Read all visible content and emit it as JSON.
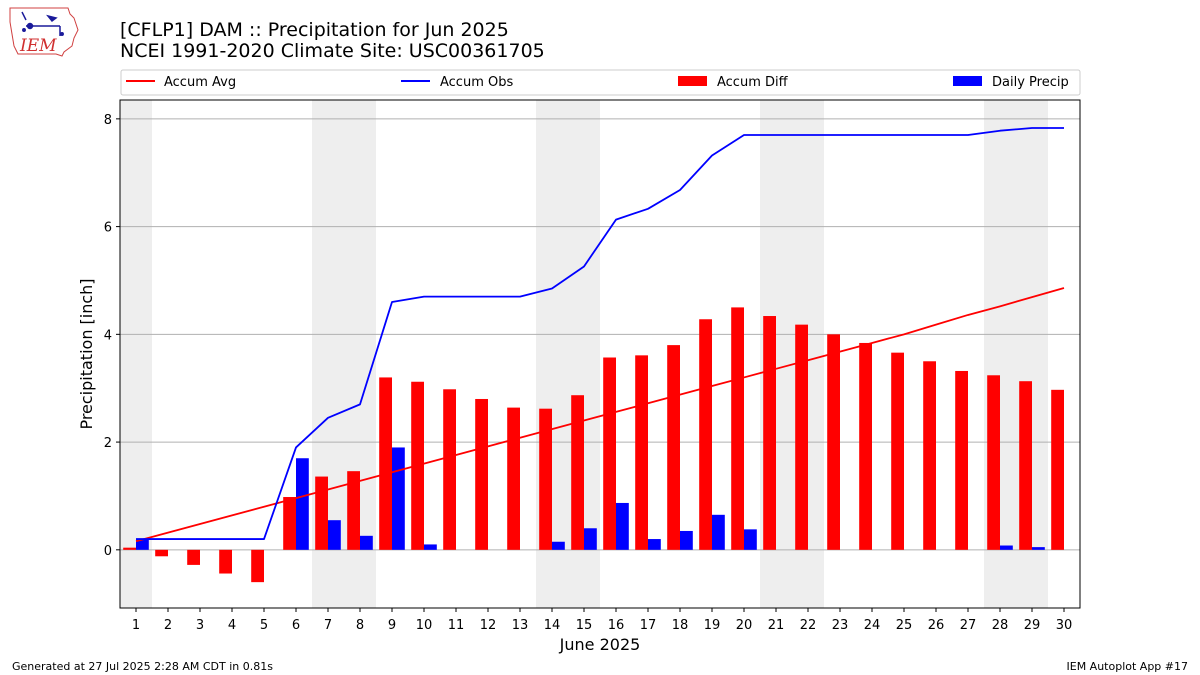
{
  "logo": {
    "text": "IEM"
  },
  "header": {
    "title": "[CFLP1] DAM :: Precipitation for Jun 2025",
    "subtitle": "NCEI 1991-2020 Climate Site: USC00361705"
  },
  "footer": {
    "left": "Generated at 27 Jul 2025 2:28 AM CDT in 0.81s",
    "right": "IEM Autoplot App #17"
  },
  "colors": {
    "accum_avg": "#ff0000",
    "accum_obs": "#0000ff",
    "accum_diff": "#ff0000",
    "daily_precip": "#0000ff",
    "weekend_shade": "#eeeeee",
    "grid": "#b0b0b0"
  },
  "chart_data": {
    "type": "bar",
    "title": "[CFLP1] DAM :: Precipitation for Jun 2025",
    "subtitle": "NCEI 1991-2020 Climate Site: USC00361705",
    "xlabel": "June 2025",
    "ylabel": "Precipitation [inch]",
    "xlim": [
      0.5,
      30.5
    ],
    "ylim": [
      -1.08,
      8.35
    ],
    "x": [
      1,
      2,
      3,
      4,
      5,
      6,
      7,
      8,
      9,
      10,
      11,
      12,
      13,
      14,
      15,
      16,
      17,
      18,
      19,
      20,
      21,
      22,
      23,
      24,
      25,
      26,
      27,
      28,
      29,
      30
    ],
    "x_tick_labels": [
      "1",
      "2",
      "3",
      "4",
      "5",
      "6",
      "7",
      "8",
      "9",
      "10",
      "11",
      "12",
      "13",
      "14",
      "15",
      "16",
      "17",
      "18",
      "19",
      "20",
      "21",
      "22",
      "23",
      "24",
      "25",
      "26",
      "27",
      "28",
      "29",
      "30"
    ],
    "y_ticks": [
      0,
      2,
      4,
      6,
      8
    ],
    "y_tick_labels": [
      "0",
      "2",
      "4",
      "6",
      "8"
    ],
    "grid": "horizontal",
    "shaded_days": [
      1,
      7,
      8,
      14,
      15,
      21,
      22,
      28,
      29
    ],
    "legend_position": "top",
    "series": [
      {
        "name": "Accum Avg",
        "kind": "line",
        "color": "#ff0000",
        "values": [
          0.16,
          0.32,
          0.48,
          0.64,
          0.8,
          0.96,
          1.12,
          1.28,
          1.44,
          1.6,
          1.76,
          1.92,
          2.08,
          2.24,
          2.4,
          2.56,
          2.72,
          2.88,
          3.04,
          3.2,
          3.36,
          3.52,
          3.68,
          3.84,
          4.0,
          4.18,
          4.36,
          4.52,
          4.69,
          4.86
        ]
      },
      {
        "name": "Accum Obs",
        "kind": "line",
        "color": "#0000ff",
        "values": [
          0.2,
          0.2,
          0.2,
          0.2,
          0.2,
          1.9,
          2.45,
          2.7,
          4.6,
          4.7,
          4.7,
          4.7,
          4.7,
          4.85,
          5.26,
          6.13,
          6.33,
          6.68,
          7.32,
          7.7,
          7.7,
          7.7,
          7.7,
          7.7,
          7.7,
          7.7,
          7.7,
          7.78,
          7.83,
          7.83
        ]
      },
      {
        "name": "Accum Diff",
        "kind": "bar",
        "color": "#ff0000",
        "values": [
          0.04,
          -0.12,
          -0.28,
          -0.44,
          -0.6,
          0.98,
          1.36,
          1.46,
          3.2,
          3.12,
          2.98,
          2.8,
          2.64,
          2.62,
          2.87,
          3.57,
          3.61,
          3.8,
          4.28,
          4.5,
          4.34,
          4.18,
          4.0,
          3.84,
          3.66,
          3.5,
          3.32,
          3.24,
          3.13,
          2.97
        ]
      },
      {
        "name": "Daily Precip",
        "kind": "bar",
        "color": "#0000ff",
        "values": [
          0.2,
          0,
          0,
          0,
          0,
          1.7,
          0.55,
          0.26,
          1.9,
          0.1,
          0,
          0,
          0,
          0.15,
          0.4,
          0.87,
          0.2,
          0.35,
          0.65,
          0.38,
          0,
          0,
          0,
          0,
          0,
          0,
          0,
          0.08,
          0.05,
          0
        ]
      }
    ]
  }
}
